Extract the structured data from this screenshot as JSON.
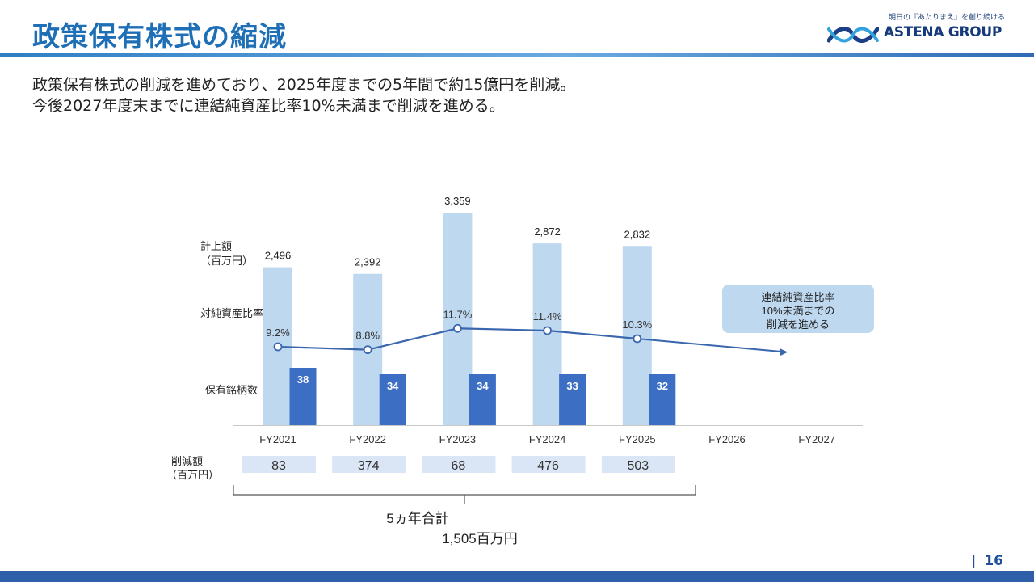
{
  "header": {
    "title": "政策保有株式の縮減",
    "logo_tagline": "明日の『あたりまえ』を創り続ける",
    "logo_text": "ASTENA GROUP",
    "logo_icon": "astena-wave-logo-icon"
  },
  "summary": {
    "line1": "政策保有株式の削減を進めており、2025年度までの5年間で約15億円を削減。",
    "line2": "今後2027年度末までに連結純資産比率10%未満まで削減を進める。"
  },
  "chart_data": {
    "type": "bar",
    "categories": [
      "FY2021",
      "FY2022",
      "FY2023",
      "FY2024",
      "FY2025",
      "FY2026",
      "FY2027"
    ],
    "series": [
      {
        "name": "計上額（百万円）",
        "label": "計上額",
        "unit": "（百万円）",
        "kind": "bar",
        "values": [
          2496,
          2392,
          3359,
          2872,
          2832,
          null,
          null
        ],
        "value_labels": [
          "2,496",
          "2,392",
          "3,359",
          "2,872",
          "2,832",
          "",
          ""
        ],
        "color": "#bed8ef"
      },
      {
        "name": "保有銘柄数",
        "label": "保有銘柄数",
        "kind": "bar",
        "values": [
          38,
          34,
          34,
          33,
          32,
          null,
          null
        ],
        "value_labels": [
          "38",
          "34",
          "34",
          "33",
          "32",
          "",
          ""
        ],
        "color": "#3c6fc4"
      },
      {
        "name": "対純資産比率",
        "label": "対純資産比率",
        "kind": "line",
        "values": [
          9.2,
          8.8,
          11.7,
          11.4,
          10.3,
          null,
          null
        ],
        "value_labels": [
          "9.2%",
          "8.8%",
          "11.7%",
          "11.4%",
          "10.3%",
          "",
          ""
        ],
        "target_value": 10,
        "color": "#3a66ad"
      }
    ],
    "reduction": {
      "label": "削減額",
      "unit": "（百万円）",
      "values": [
        83,
        374,
        68,
        476,
        503
      ],
      "value_labels": [
        "83",
        "374",
        "68",
        "476",
        "503"
      ],
      "color": "#dae5f5"
    },
    "total": {
      "label": "5ヵ年合計",
      "value": 1505,
      "value_label": "1,505百万円"
    },
    "callout": {
      "line1": "連結純資産比率",
      "line2": "10%未満までの",
      "line3": "削減を進める",
      "color": "#bed8ef"
    },
    "ylim": [
      0,
      3500
    ],
    "grid": false,
    "legend": "left (row labels)"
  },
  "footer": {
    "page_number": "16",
    "separator": "|"
  }
}
